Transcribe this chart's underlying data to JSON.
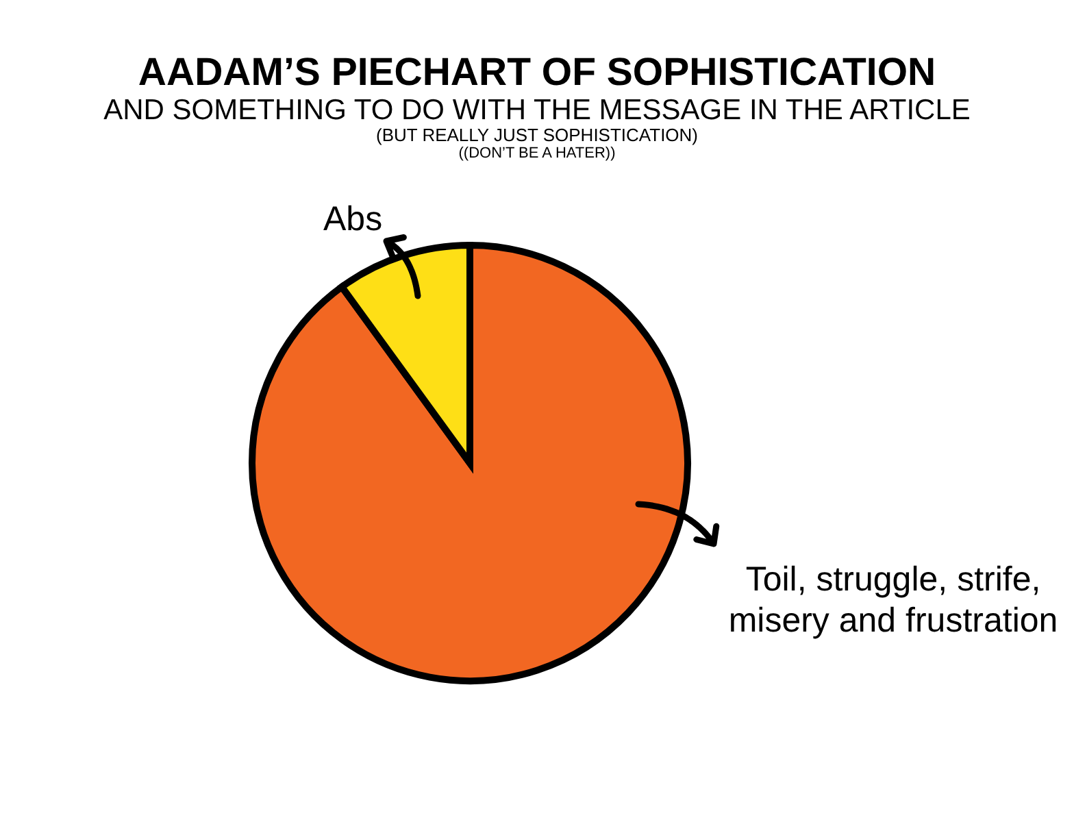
{
  "chart_data": {
    "type": "pie",
    "title": "AADAM’S PIECHART OF SOPHISTICATION",
    "subtitle": "AND SOMETHING TO DO WITH THE MESSAGE IN THE ARTICLE",
    "annotations": [
      "(BUT REALLY JUST SOPHISTICATION)",
      "((DON’T BE A HATER))"
    ],
    "categories": [
      "Toil, struggle, strife,\nmisery and frustration",
      "Abs"
    ],
    "values": [
      90,
      10
    ],
    "colors": [
      "#f26722",
      "#fedf16"
    ]
  }
}
